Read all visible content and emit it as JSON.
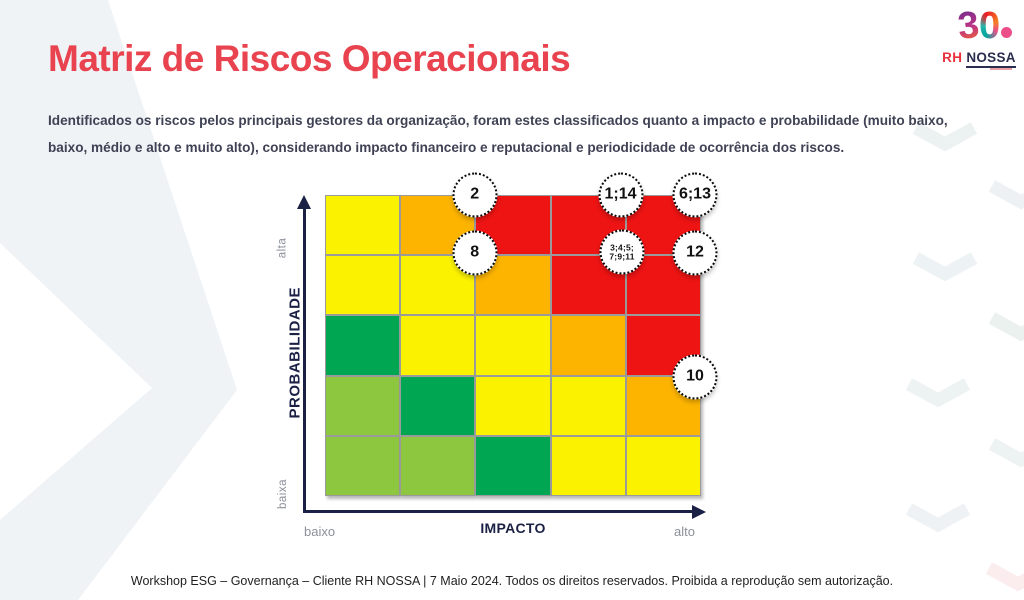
{
  "slide": {
    "title": "Matriz de Riscos Operacionais",
    "intro": "Identificados os riscos pelos principais gestores da organização, foram estes classificados quanto a impacto e probabilidade (muito baixo, baixo, médio e alto e muito alto), considerando impacto financeiro e reputacional e periodicidade de ocorrência dos riscos.",
    "footer": "Workshop ESG – Governança – Cliente RH NOSSA | 7 Maio 2024. Todos os direitos reservados. Proibida a reprodução sem autorização."
  },
  "logo": {
    "number_3": "3",
    "number_0": "0",
    "rh": "RH",
    "nossa": "NOSSA"
  },
  "colors": {
    "title": "#E8434E",
    "body_text": "#3F4254",
    "axis": "#1B2144",
    "muted_label": "#8A8F99",
    "grid_line": "#9B9B9B",
    "badge_border": "#0A0A0A",
    "cell": {
      "lightgreen": "#8DC63F",
      "green": "#00A651",
      "yellow": "#FBF200",
      "orange": "#FCB400",
      "red": "#EE1414"
    }
  },
  "chart_data": {
    "type": "heatmap",
    "title": "Matriz de Riscos Operacionais",
    "xlabel": "IMPACTO",
    "ylabel": "PROBABILIDADE",
    "x_range_labels": [
      "baixo",
      "alto"
    ],
    "y_range_labels": [
      "baixa",
      "alta"
    ],
    "grid": {
      "rows": 5,
      "cols": 5
    },
    "cell_colors": [
      [
        "yellow",
        "orange",
        "red",
        "red",
        "red"
      ],
      [
        "yellow",
        "yellow",
        "orange",
        "red",
        "red"
      ],
      [
        "green",
        "yellow",
        "yellow",
        "orange",
        "red"
      ],
      [
        "lightgreen",
        "green",
        "yellow",
        "yellow",
        "orange"
      ],
      [
        "lightgreen",
        "lightgreen",
        "green",
        "yellow",
        "yellow"
      ]
    ],
    "risk_markers": [
      {
        "label": "2",
        "lines": [
          "2"
        ],
        "grid_x": 1.99,
        "grid_y": 0,
        "small": false
      },
      {
        "label": "1;14",
        "lines": [
          "1;14"
        ],
        "grid_x": 3.93,
        "grid_y": 0,
        "small": false
      },
      {
        "label": "6;13",
        "lines": [
          "6;13"
        ],
        "grid_x": 4.92,
        "grid_y": 0,
        "small": false
      },
      {
        "label": "8",
        "lines": [
          "8"
        ],
        "grid_x": 1.99,
        "grid_y": 0.97,
        "small": false
      },
      {
        "label": "3;4;5;7;9;11",
        "lines": [
          "3;4;5;",
          "7;9;11"
        ],
        "grid_x": 3.95,
        "grid_y": 0.95,
        "small": true
      },
      {
        "label": "12",
        "lines": [
          "12"
        ],
        "grid_x": 4.92,
        "grid_y": 0.97,
        "small": false
      },
      {
        "label": "10",
        "lines": [
          "10"
        ],
        "grid_x": 4.92,
        "grid_y": 3.02,
        "small": false
      }
    ],
    "legend": "off"
  }
}
